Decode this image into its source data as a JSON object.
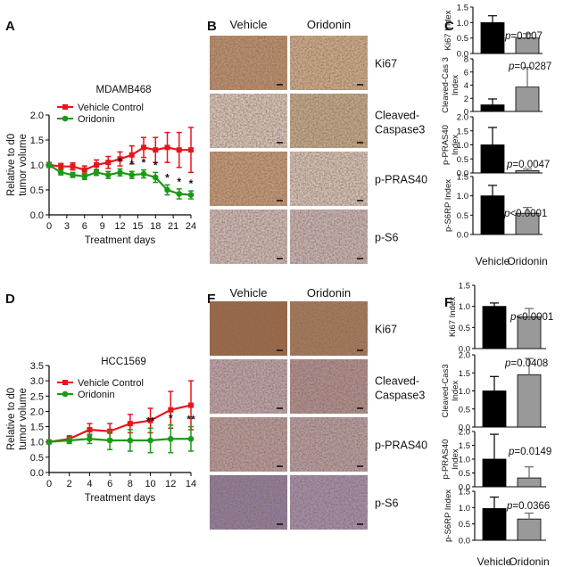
{
  "panel_letters": [
    "A",
    "B",
    "C",
    "D",
    "E",
    "F"
  ],
  "micro_headers": [
    "Vehicle",
    "Oridonin"
  ],
  "micro_rows": [
    "Ki67",
    "Cleaved-Caspase3",
    "p-PRAS40",
    "p-S6"
  ],
  "micro_colors": {
    "B": [
      [
        "#b79074",
        "#c8aa8f"
      ],
      [
        "#d1c3bd",
        "#bda88f"
      ],
      [
        "#bf987d",
        "#cfc1bb"
      ],
      [
        "#c8b9bb",
        "#c2b3b8"
      ]
    ],
    "E": [
      [
        "#9a6a4e",
        "#a37b62"
      ],
      [
        "#b8a3b0",
        "#ab8f95"
      ],
      [
        "#b39aa0",
        "#b29ca6"
      ],
      [
        "#8d7ea3",
        "#9f8fb0"
      ]
    ]
  },
  "group_labels": [
    "Vehicle",
    "Oridonin"
  ],
  "colors": {
    "vehicle": "#e8141c",
    "oridonin": "#1a9a16",
    "bar_vehicle": "#000000",
    "bar_oridonin": "#999999"
  },
  "chart_data": [
    {
      "panel": "A",
      "type": "line",
      "title": "MDAMB468",
      "xlabel": "Treatment days",
      "ylabel": "Relative to d0 tumor volume",
      "xlim": [
        0,
        24
      ],
      "ylim": [
        0,
        2.0
      ],
      "xticks": [
        0,
        3,
        6,
        9,
        12,
        15,
        18,
        21,
        24
      ],
      "yticks": [
        "0.0",
        "0.5",
        "1.0",
        "1.5",
        "2.0"
      ],
      "x": [
        0,
        2,
        4,
        6,
        8,
        10,
        12,
        14,
        16,
        18,
        20,
        22,
        24
      ],
      "series": [
        {
          "name": "Vehicle Control",
          "values": [
            1.0,
            0.97,
            0.97,
            0.9,
            1.0,
            1.05,
            1.12,
            1.2,
            1.35,
            1.3,
            1.35,
            1.3,
            1.3
          ],
          "err": [
            0.05,
            0.06,
            0.07,
            0.08,
            0.1,
            0.12,
            0.14,
            0.18,
            0.2,
            0.25,
            0.3,
            0.35,
            0.45
          ]
        },
        {
          "name": "Oridonin",
          "values": [
            1.0,
            0.85,
            0.8,
            0.77,
            0.85,
            0.8,
            0.85,
            0.8,
            0.82,
            0.75,
            0.5,
            0.42,
            0.4
          ],
          "err": [
            0.04,
            0.05,
            0.05,
            0.06,
            0.06,
            0.07,
            0.07,
            0.07,
            0.08,
            0.1,
            0.1,
            0.1,
            0.08
          ]
        }
      ],
      "significance": [
        {
          "x": 12,
          "label": "*"
        },
        {
          "x": 14,
          "label": "*"
        },
        {
          "x": 16,
          "label": "*"
        },
        {
          "x": 18,
          "label": "*"
        },
        {
          "x": 20,
          "label": "*"
        },
        {
          "x": 22,
          "label": "*"
        },
        {
          "x": 24,
          "label": "*"
        }
      ]
    },
    {
      "panel": "D",
      "type": "line",
      "title": "HCC1569",
      "xlabel": "Treatment days",
      "ylabel": "Relative to d0 tumor volume",
      "xlim": [
        0,
        14
      ],
      "ylim": [
        0,
        3.5
      ],
      "xticks": [
        0,
        2,
        4,
        6,
        8,
        10,
        12,
        14
      ],
      "yticks": [
        "0.0",
        "0.5",
        "1.0",
        "1.5",
        "2.0",
        "2.5",
        "3.0",
        "3.5"
      ],
      "x": [
        0,
        2,
        4,
        6,
        8,
        10,
        12,
        14
      ],
      "series": [
        {
          "name": "Vehicle Control",
          "values": [
            1.0,
            1.1,
            1.4,
            1.35,
            1.6,
            1.7,
            2.05,
            2.2
          ],
          "err": [
            0.05,
            0.1,
            0.2,
            0.25,
            0.3,
            0.4,
            0.6,
            0.8
          ]
        },
        {
          "name": "Oridonin",
          "values": [
            1.0,
            1.05,
            1.1,
            1.05,
            1.05,
            1.05,
            1.1,
            1.1
          ],
          "err": [
            0.05,
            0.1,
            0.15,
            0.3,
            0.35,
            0.4,
            0.45,
            0.4
          ]
        }
      ],
      "significance": [
        {
          "x": 10,
          "label": "**"
        },
        {
          "x": 12,
          "label": "*"
        },
        {
          "x": 14,
          "label": "**"
        }
      ]
    },
    {
      "panel": "C",
      "type": "bar",
      "categories": [
        "Vehicle",
        "Oridonin"
      ],
      "subplots": [
        {
          "ylabel": "Ki67 Index",
          "ylim": [
            0,
            1.5
          ],
          "yticks": [
            "0.0",
            "0.5",
            "1.0",
            "1.5"
          ],
          "values": [
            1.0,
            0.5
          ],
          "err": [
            0.22,
            0.14
          ],
          "p": "p=0.007"
        },
        {
          "ylabel": "Cleaved-Cas 3 Index",
          "ylim": [
            0,
            8
          ],
          "yticks": [
            "0",
            "2",
            "4",
            "6",
            "8"
          ],
          "values": [
            1.0,
            3.7
          ],
          "err": [
            0.9,
            3.0
          ],
          "p": "p=0.0287"
        },
        {
          "ylabel": "p-PRAS40 Index",
          "ylim": [
            0,
            2.0
          ],
          "yticks": [
            "0.0",
            "0.5",
            "1.0",
            "1.5",
            "2.0"
          ],
          "values": [
            1.0,
            0.08
          ],
          "err": [
            0.62,
            0.06
          ],
          "p": "p=0.0047"
        },
        {
          "ylabel": "p-S6RP Index",
          "ylim": [
            0,
            1.5
          ],
          "yticks": [
            "0.0",
            "0.5",
            "1.0",
            "1.5"
          ],
          "values": [
            1.0,
            0.55
          ],
          "err": [
            0.27,
            0.15
          ],
          "p": "p<0.0001"
        }
      ]
    },
    {
      "panel": "F",
      "type": "bar",
      "categories": [
        "Vehicle",
        "Oridonin"
      ],
      "subplots": [
        {
          "ylabel": "Ki67 Index",
          "ylim": [
            0,
            1.5
          ],
          "yticks": [
            "0.0",
            "0.5",
            "1.0",
            "1.5"
          ],
          "values": [
            1.0,
            0.75
          ],
          "err": [
            0.08,
            0.2
          ],
          "p": "p<0.0001"
        },
        {
          "ylabel": "Cleaved-Cas3 Index",
          "ylim": [
            0,
            2.0
          ],
          "yticks": [
            "0.0",
            "0.5",
            "1.0",
            "1.5",
            "2.0"
          ],
          "values": [
            1.0,
            1.45
          ],
          "err": [
            0.4,
            0.45
          ],
          "p": "p=0.0408"
        },
        {
          "ylabel": "p-PRAS40 Index",
          "ylim": [
            0,
            2.0
          ],
          "yticks": [
            "0.0",
            "0.5",
            "1.0",
            "1.5",
            "2.0"
          ],
          "values": [
            1.0,
            0.32
          ],
          "err": [
            0.9,
            0.4
          ],
          "p": "p=0.0149"
        },
        {
          "ylabel": "p-S6RP Index",
          "ylim": [
            0,
            1.5
          ],
          "yticks": [
            "0.0",
            "0.5",
            "1.0",
            "1.5"
          ],
          "values": [
            0.97,
            0.65
          ],
          "err": [
            0.35,
            0.18
          ],
          "p": "p=0.0366"
        }
      ]
    }
  ]
}
